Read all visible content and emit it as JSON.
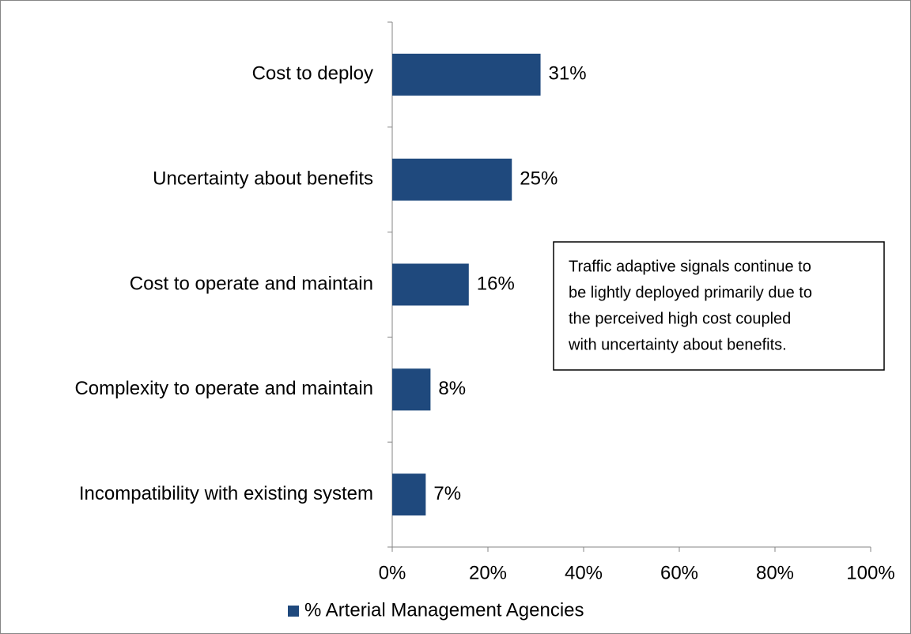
{
  "chart_data": {
    "type": "bar",
    "orientation": "horizontal",
    "categories": [
      "Cost to deploy",
      "Uncertainty about benefits",
      "Cost to operate and maintain",
      "Complexity to operate and maintain",
      "Incompatibility with existing system"
    ],
    "series": [
      {
        "name": "% Arterial Management Agencies",
        "color": "#1f497d",
        "values": [
          31,
          25,
          16,
          8,
          7
        ],
        "value_labels": [
          "31%",
          "25%",
          "16%",
          "8%",
          "7%"
        ]
      }
    ],
    "xlim": [
      0,
      100
    ],
    "xticks": [
      {
        "value": 0,
        "label": "0%"
      },
      {
        "value": 20,
        "label": "20%"
      },
      {
        "value": 40,
        "label": "40%"
      },
      {
        "value": 60,
        "label": "60%"
      },
      {
        "value": 80,
        "label": "80%"
      },
      {
        "value": 100,
        "label": "100%"
      }
    ],
    "grid": false,
    "legend": "bottom",
    "annotation": [
      "Traffic adaptive signals continue to",
      "be lightly deployed primarily due to",
      "the perceived high cost coupled",
      "with uncertainty about benefits."
    ]
  }
}
